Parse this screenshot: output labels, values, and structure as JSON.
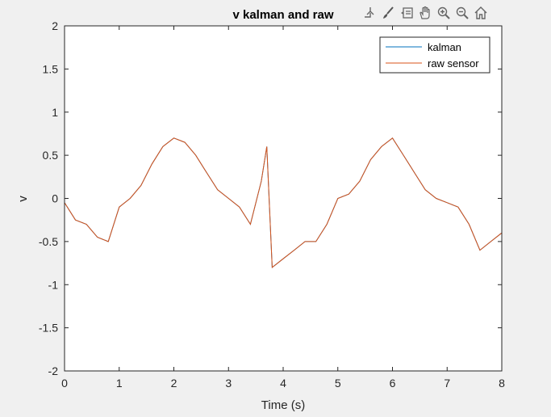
{
  "toolbar": {
    "icons": [
      "export-icon",
      "brush-icon",
      "data-tips-icon",
      "pan-hand-icon",
      "zoom-in-icon",
      "zoom-out-icon",
      "home-icon"
    ]
  },
  "colors": {
    "kalman": "#0072BD",
    "raw_sensor": "#D95319",
    "background": "#f0f0f0",
    "axes_bg": "#ffffff",
    "axes_line": "#262626"
  },
  "chart_data": {
    "type": "line",
    "title": "v kalman and raw",
    "xlabel": "Time (s)",
    "ylabel": "v",
    "xlim": [
      0,
      8
    ],
    "ylim": [
      -2,
      2
    ],
    "xticks": [
      "0",
      "1",
      "2",
      "3",
      "4",
      "5",
      "6",
      "7",
      "8"
    ],
    "yticks": [
      "-2",
      "-1.5",
      "-1",
      "-0.5",
      "0",
      "0.5",
      "1",
      "1.5",
      "2"
    ],
    "grid": false,
    "legend_location": "top-right",
    "series": [
      {
        "name": "kalman",
        "x": [
          0,
          0.2,
          0.4,
          0.6,
          0.8,
          1.0,
          1.2,
          1.4,
          1.6,
          1.8,
          2.0,
          2.2,
          2.4,
          2.6,
          2.8,
          3.0,
          3.2,
          3.4,
          3.6,
          3.7,
          3.8,
          4.0,
          4.2,
          4.4,
          4.6,
          4.8,
          5.0,
          5.2,
          5.4,
          5.6,
          5.8,
          6.0,
          6.2,
          6.4,
          6.6,
          6.8,
          7.0,
          7.2,
          7.4,
          7.6,
          7.8,
          8.0
        ],
        "y": [
          -0.05,
          -0.25,
          -0.3,
          -0.45,
          -0.5,
          -0.1,
          0.0,
          0.15,
          0.4,
          0.6,
          0.7,
          0.65,
          0.5,
          0.3,
          0.1,
          0.0,
          -0.1,
          -0.3,
          0.2,
          0.6,
          -0.8,
          -0.7,
          -0.6,
          -0.5,
          -0.5,
          -0.3,
          0.0,
          0.05,
          0.2,
          0.45,
          0.6,
          0.7,
          0.5,
          0.3,
          0.1,
          0.0,
          -0.05,
          -0.1,
          -0.3,
          -0.6,
          -0.5,
          -0.4
        ]
      },
      {
        "name": "raw sensor",
        "x": [
          0,
          0.2,
          0.4,
          0.6,
          0.8,
          1.0,
          1.2,
          1.4,
          1.6,
          1.8,
          2.0,
          2.2,
          2.4,
          2.6,
          2.8,
          3.0,
          3.2,
          3.4,
          3.6,
          3.7,
          3.8,
          4.0,
          4.2,
          4.4,
          4.6,
          4.8,
          5.0,
          5.2,
          5.4,
          5.6,
          5.8,
          6.0,
          6.2,
          6.4,
          6.6,
          6.8,
          7.0,
          7.2,
          7.4,
          7.6,
          7.8,
          8.0
        ],
        "y": [
          -0.05,
          -0.25,
          -0.3,
          -0.45,
          -0.5,
          -0.1,
          0.0,
          0.15,
          0.4,
          0.6,
          0.7,
          0.65,
          0.5,
          0.3,
          0.1,
          0.0,
          -0.1,
          -0.3,
          0.2,
          0.6,
          -0.8,
          -0.7,
          -0.6,
          -0.5,
          -0.5,
          -0.3,
          0.0,
          0.05,
          0.2,
          0.45,
          0.6,
          0.7,
          0.5,
          0.3,
          0.1,
          0.0,
          -0.05,
          -0.1,
          -0.3,
          -0.6,
          -0.5,
          -0.4
        ]
      }
    ]
  }
}
